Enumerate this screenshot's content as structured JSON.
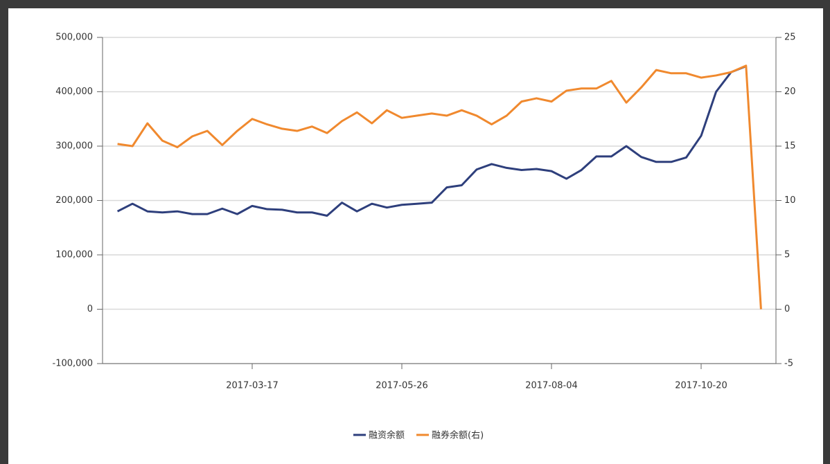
{
  "chart_data": {
    "type": "line",
    "categories": [
      null,
      null,
      null,
      null,
      null,
      null,
      null,
      null,
      null,
      "2017-03-17",
      null,
      null,
      null,
      null,
      null,
      null,
      null,
      null,
      null,
      "2017-05-26",
      null,
      null,
      null,
      null,
      null,
      null,
      null,
      null,
      null,
      "2017-08-04",
      null,
      null,
      null,
      null,
      null,
      null,
      null,
      null,
      null,
      "2017-10-20",
      null,
      null,
      null,
      null
    ],
    "series": [
      {
        "name": "融资余额",
        "color": "#2e3f7c",
        "values": [
          180000,
          194000,
          180000,
          178000,
          180000,
          175000,
          175000,
          185000,
          175000,
          190000,
          184000,
          183000,
          178000,
          178000,
          172000,
          196000,
          180000,
          194000,
          187000,
          192000,
          194000,
          196000,
          224000,
          228000,
          257000,
          267000,
          260000,
          256000,
          258000,
          254000,
          240000,
          256000,
          281000,
          281000,
          300000,
          280000,
          271000,
          271000,
          279000,
          319000,
          400000,
          436000,
          447000,
          null
        ]
      },
      {
        "name": "融券余额(右)",
        "color": "#f0892e",
        "axis": "y2",
        "values": [
          15.2,
          15.0,
          17.1,
          15.5,
          14.9,
          15.9,
          16.4,
          15.1,
          16.4,
          17.5,
          17.0,
          16.6,
          16.4,
          16.8,
          16.2,
          17.3,
          18.1,
          17.1,
          18.3,
          17.6,
          17.8,
          18.0,
          17.8,
          18.3,
          17.8,
          17.0,
          17.8,
          19.1,
          19.4,
          19.1,
          20.1,
          20.3,
          20.3,
          21.0,
          19.0,
          20.4,
          22.0,
          21.7,
          21.7,
          21.3,
          21.5,
          21.8,
          22.4,
          0
        ]
      }
    ],
    "ylim": [
      -100000,
      500000
    ],
    "yticks": [
      {
        "value": -100000,
        "label": "-100,000"
      },
      0,
      {
        "value": 100000,
        "label": "100,000"
      },
      {
        "value": 200000,
        "label": "200,000"
      },
      {
        "value": 300000,
        "label": "300,000"
      },
      {
        "value": 400000,
        "label": "400,000"
      },
      {
        "value": 500000,
        "label": "500,000"
      }
    ],
    "y2lim": [
      -5,
      25
    ],
    "y2ticks": [
      -5,
      0,
      5,
      10,
      15,
      20,
      25
    ],
    "grid": true,
    "legend": "bottom"
  }
}
